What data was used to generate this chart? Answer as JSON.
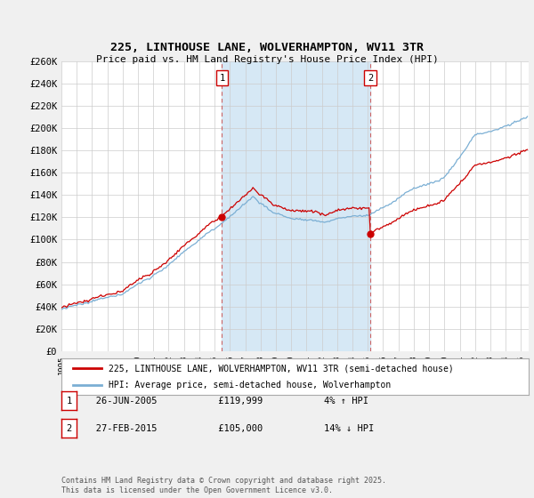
{
  "title": "225, LINTHOUSE LANE, WOLVERHAMPTON, WV11 3TR",
  "subtitle": "Price paid vs. HM Land Registry's House Price Index (HPI)",
  "ylabel_values": [
    "£0",
    "£20K",
    "£40K",
    "£60K",
    "£80K",
    "£100K",
    "£120K",
    "£140K",
    "£160K",
    "£180K",
    "£200K",
    "£220K",
    "£240K",
    "£260K"
  ],
  "ylim": [
    0,
    260000
  ],
  "yticks": [
    0,
    20000,
    40000,
    60000,
    80000,
    100000,
    120000,
    140000,
    160000,
    180000,
    200000,
    220000,
    240000,
    260000
  ],
  "xlim_start": 1995.0,
  "xlim_end": 2025.5,
  "sale1": {
    "year": 2005.48,
    "price": 119999,
    "label": "1",
    "date": "26-JUN-2005",
    "pct": "4%",
    "dir": "↑"
  },
  "sale2": {
    "year": 2015.16,
    "price": 105000,
    "label": "2",
    "date": "27-FEB-2015",
    "pct": "14%",
    "dir": "↓"
  },
  "legend_line1": "225, LINTHOUSE LANE, WOLVERHAMPTON, WV11 3TR (semi-detached house)",
  "legend_line2": "HPI: Average price, semi-detached house, Wolverhampton",
  "footer": "Contains HM Land Registry data © Crown copyright and database right 2025.\nThis data is licensed under the Open Government Licence v3.0.",
  "line_color_red": "#cc0000",
  "line_color_blue": "#7bafd4",
  "shade_color": "#d6e8f5",
  "bg_color": "#f0f0f0",
  "plot_bg": "#ffffff",
  "grid_color": "#cccccc"
}
